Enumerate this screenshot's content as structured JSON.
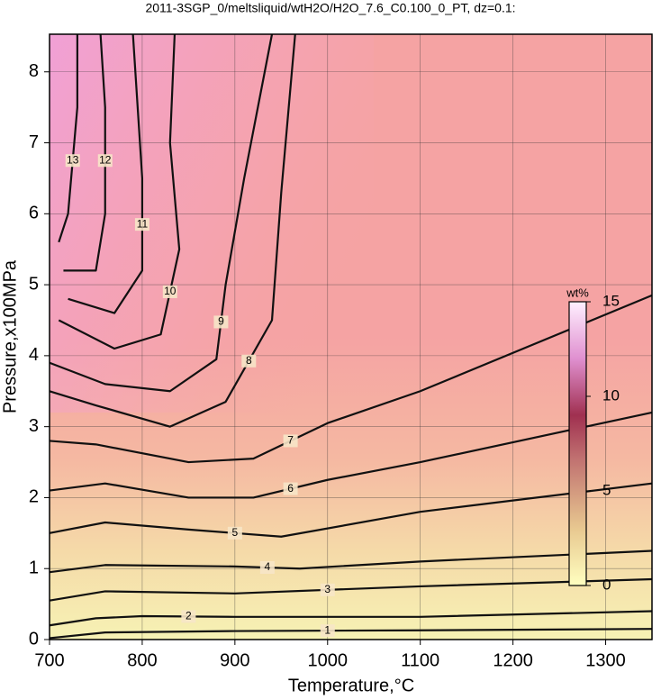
{
  "chart_data": {
    "type": "contour",
    "title": "2011-3SGP_0/meltsliquid/wtH2O/H2O_7.6_C0.100_0_PT, dz=0.1:",
    "x_label": "Temperature,°C",
    "y_label": "Pressure,x100MPa",
    "xlim": [
      700,
      1350
    ],
    "ylim": [
      0,
      8.53
    ],
    "xticks": [
      700,
      800,
      900,
      1000,
      1100,
      1200,
      1300
    ],
    "yticks": [
      0,
      1,
      2,
      3,
      4,
      5,
      6,
      7,
      8
    ],
    "grid": true,
    "line_color": "#111111",
    "contours": [
      {
        "level": 1,
        "x": [
          700,
          760,
          900,
          1100,
          1350
        ],
        "y": [
          0.02,
          0.1,
          0.12,
          0.13,
          0.15
        ]
      },
      {
        "level": 2,
        "x": [
          700,
          750,
          800,
          900,
          1100,
          1350
        ],
        "y": [
          0.2,
          0.3,
          0.33,
          0.32,
          0.32,
          0.4
        ]
      },
      {
        "level": 3,
        "x": [
          700,
          760,
          900,
          1100,
          1350
        ],
        "y": [
          0.55,
          0.68,
          0.65,
          0.75,
          0.85
        ]
      },
      {
        "level": 4,
        "x": [
          700,
          760,
          900,
          970,
          1100,
          1350
        ],
        "y": [
          0.95,
          1.05,
          1.03,
          1.0,
          1.1,
          1.25
        ]
      },
      {
        "level": 5,
        "x": [
          700,
          760,
          850,
          950,
          1100,
          1350
        ],
        "y": [
          1.5,
          1.65,
          1.55,
          1.45,
          1.8,
          2.2
        ]
      },
      {
        "level": 6,
        "x": [
          700,
          760,
          850,
          920,
          1000,
          1100,
          1350
        ],
        "y": [
          2.1,
          2.2,
          2.0,
          2.0,
          2.25,
          2.5,
          3.2
        ]
      },
      {
        "level": 7,
        "x": [
          700,
          750,
          850,
          920,
          1000,
          1100,
          1350
        ],
        "y": [
          2.8,
          2.75,
          2.5,
          2.55,
          3.05,
          3.5,
          4.85
        ]
      },
      {
        "level": 8,
        "x": [
          700,
          750,
          830,
          890,
          940,
          950,
          965
        ],
        "y": [
          3.5,
          3.3,
          3.0,
          3.35,
          4.5,
          6.3,
          8.53
        ]
      },
      {
        "level": 9,
        "x": [
          700,
          760,
          830,
          880,
          890,
          910,
          940
        ],
        "y": [
          3.9,
          3.6,
          3.5,
          3.95,
          5.0,
          6.5,
          8.53
        ]
      },
      {
        "level": 10,
        "x": [
          710,
          770,
          820,
          840,
          830,
          835
        ],
        "y": [
          4.5,
          4.1,
          4.3,
          5.5,
          7.0,
          8.53
        ]
      },
      {
        "level": 11,
        "x": [
          720,
          770,
          800,
          800,
          790
        ],
        "y": [
          4.8,
          4.6,
          5.2,
          6.5,
          8.53
        ]
      },
      {
        "level": 12,
        "x": [
          715,
          750,
          760,
          760,
          755
        ],
        "y": [
          5.2,
          5.2,
          6.0,
          7.5,
          8.53
        ]
      },
      {
        "level": 13,
        "x": [
          710,
          720,
          730,
          730
        ],
        "y": [
          5.6,
          6.0,
          7.5,
          8.53
        ]
      }
    ],
    "colorbar": {
      "label": "wt%",
      "lim": [
        0,
        15
      ],
      "ticks": [
        0,
        5,
        10,
        15
      ]
    }
  }
}
